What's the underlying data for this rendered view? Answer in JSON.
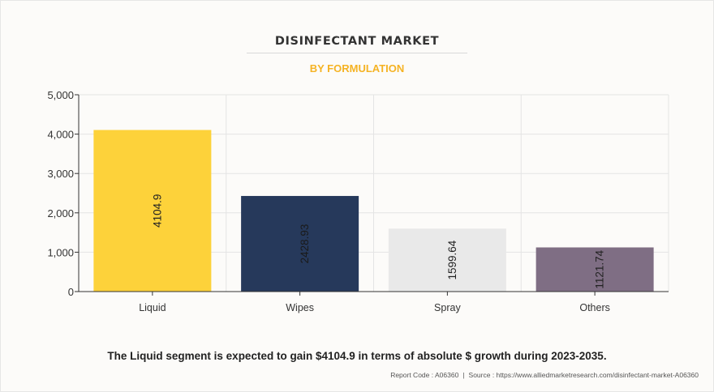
{
  "header": {
    "title": "DISINFECTANT MARKET",
    "subtitle": "BY FORMULATION"
  },
  "caption": "The Liquid segment is expected to gain $4104.9 in terms of absolute $ growth during 2023-2035.",
  "footer": {
    "report_code": "Report Code : A06360",
    "separator": "|",
    "source": "Source : https://www.alliedmarketresearch.com/disinfectant-market-A06360"
  },
  "colors": {
    "title": "#333333",
    "subtitle": "#f5b324",
    "bars": [
      "#fdd23a",
      "#26395b",
      "#e9e9e9",
      "#7f6e84"
    ]
  },
  "chart_data": {
    "type": "bar",
    "title": "DISINFECTANT MARKET",
    "subtitle": "BY FORMULATION",
    "categories": [
      "Liquid",
      "Wipes",
      "Spray",
      "Others"
    ],
    "values": [
      4104.9,
      2428.93,
      1599.64,
      1121.74
    ],
    "data_labels": [
      "4104.9",
      "2428.93",
      "1599.64",
      "1121.74"
    ],
    "ylim": [
      0,
      5000
    ],
    "yticks": [
      0,
      1000,
      2000,
      3000,
      4000,
      5000
    ],
    "ytick_labels": [
      "0",
      "1,000",
      "2,000",
      "3,000",
      "4,000",
      "5,000"
    ],
    "xlabel": "",
    "ylabel": "",
    "grid": true,
    "legend": "none"
  }
}
